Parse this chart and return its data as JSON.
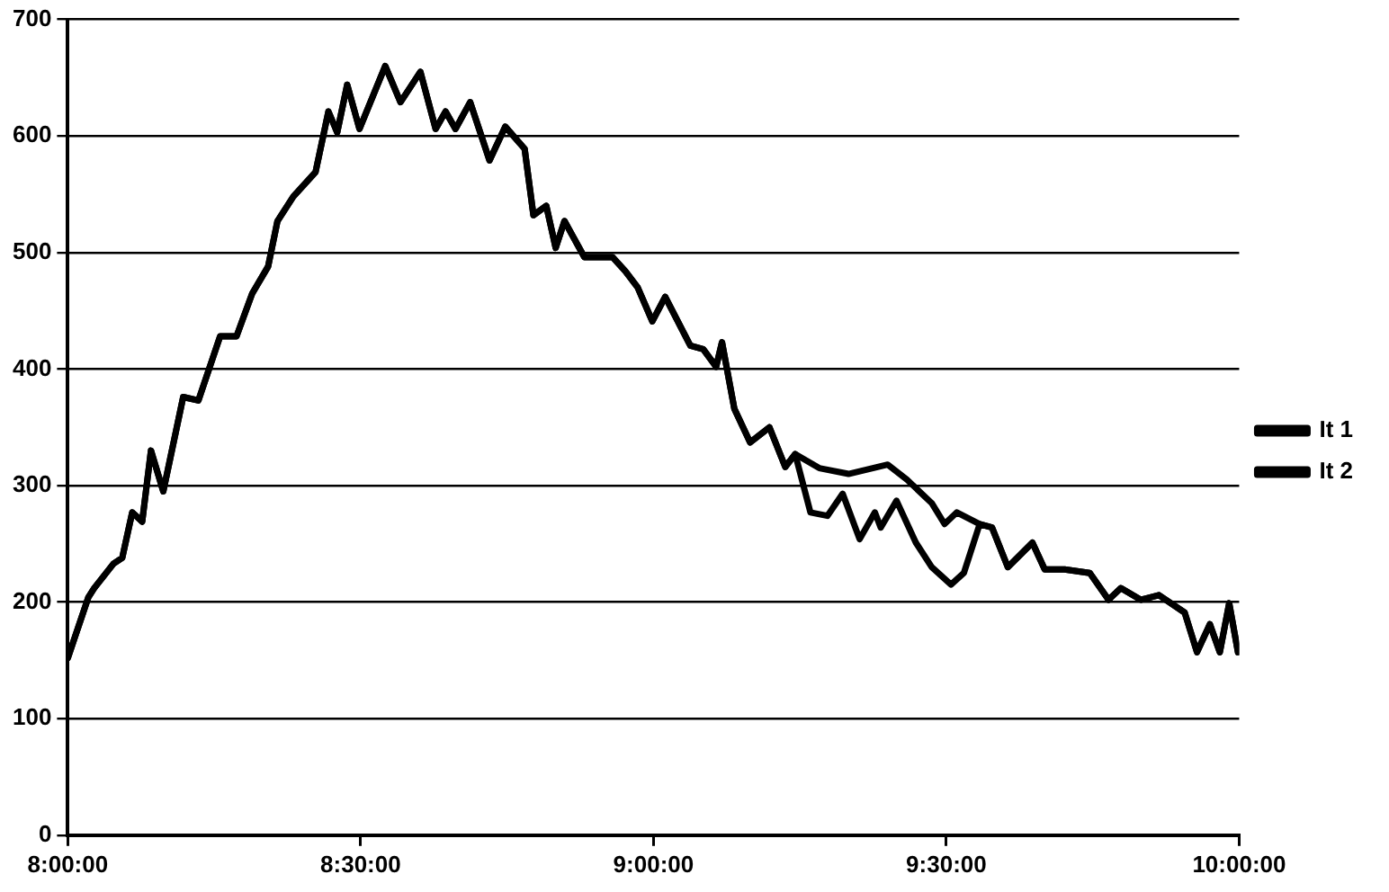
{
  "chart_data": {
    "type": "line",
    "legend": "right",
    "grid": "y",
    "marker": "none",
    "line_style": "solid",
    "xlim": [
      8,
      10
    ],
    "xticks": [
      {
        "value": 8,
        "label": "8:00:00"
      },
      {
        "value": 8.5,
        "label": "8:30:00"
      },
      {
        "value": 9,
        "label": "9:00:00"
      },
      {
        "value": 9.5,
        "label": "9:30:00"
      },
      {
        "value": 10,
        "label": "10:00:00"
      }
    ],
    "ylim": [
      0,
      700
    ],
    "yticks": [
      0,
      100,
      200,
      300,
      400,
      500,
      600,
      700
    ],
    "series": [
      {
        "name": "It 1",
        "color": "#000000",
        "x": [
          8,
          8.035,
          8.045,
          8.078,
          8.093,
          8.11,
          8.127,
          8.142,
          8.163,
          8.197,
          8.223,
          8.26,
          8.288,
          8.315,
          8.342,
          8.358,
          8.385,
          8.423,
          8.445,
          8.46,
          8.477,
          8.498,
          8.542,
          8.568,
          8.602,
          8.628,
          8.645,
          8.662,
          8.687,
          8.72,
          8.747,
          8.78,
          8.795,
          8.817,
          8.833,
          8.848,
          8.882,
          8.93,
          8.952,
          8.973,
          8.998,
          9.02,
          9.063,
          9.085,
          9.107,
          9.117,
          9.138,
          9.165,
          9.198,
          9.225,
          9.242,
          9.268,
          9.297,
          9.323,
          9.352,
          9.378,
          9.388,
          9.415,
          9.448,
          9.475,
          9.508,
          9.53,
          9.557,
          9.578,
          9.605,
          9.647,
          9.668,
          9.702,
          9.745,
          9.777,
          9.798,
          9.832,
          9.863,
          9.907,
          9.928,
          9.95,
          9.967,
          9.983,
          9.998
        ],
        "values": [
          152,
          204,
          212,
          233,
          238,
          277,
          269,
          330,
          295,
          376,
          373,
          428,
          428,
          465,
          488,
          527,
          548,
          569,
          621,
          603,
          644,
          606,
          660,
          629,
          655,
          606,
          621,
          606,
          629,
          579,
          608,
          589,
          532,
          540,
          504,
          527,
          496,
          496,
          484,
          470,
          441,
          462,
          420,
          417,
          402,
          423,
          366,
          337,
          350,
          316,
          327,
          277,
          274,
          293,
          254,
          277,
          264,
          287,
          251,
          230,
          215,
          225,
          267,
          264,
          230,
          251,
          228,
          228,
          225,
          202,
          212,
          202,
          206,
          191,
          157,
          181,
          157,
          199,
          157
        ]
      },
      {
        "name": "It 2",
        "color": "#000000",
        "x": [
          8,
          8.035,
          8.045,
          8.078,
          8.093,
          8.11,
          8.127,
          8.142,
          8.163,
          8.197,
          8.223,
          8.26,
          8.288,
          8.315,
          8.342,
          8.358,
          8.385,
          8.423,
          8.445,
          8.46,
          8.477,
          8.498,
          8.542,
          8.568,
          8.602,
          8.628,
          8.645,
          8.662,
          8.687,
          8.72,
          8.747,
          8.78,
          8.795,
          8.817,
          8.833,
          8.848,
          8.882,
          8.93,
          8.952,
          8.973,
          8.998,
          9.02,
          9.063,
          9.085,
          9.107,
          9.117,
          9.138,
          9.165,
          9.198,
          9.225,
          9.242,
          9.283,
          9.333,
          9.4,
          9.433,
          9.475,
          9.497,
          9.518,
          9.557,
          9.578,
          9.605,
          9.647,
          9.668,
          9.702,
          9.745,
          9.777,
          9.798,
          9.832,
          9.863,
          9.907,
          9.928,
          9.95,
          9.967,
          9.983,
          9.998
        ],
        "values": [
          152,
          204,
          212,
          233,
          238,
          277,
          269,
          330,
          295,
          376,
          373,
          428,
          428,
          465,
          488,
          527,
          548,
          569,
          621,
          603,
          644,
          606,
          660,
          629,
          655,
          606,
          621,
          606,
          629,
          579,
          608,
          589,
          532,
          540,
          504,
          527,
          496,
          496,
          484,
          470,
          441,
          462,
          420,
          417,
          402,
          423,
          366,
          337,
          350,
          316,
          327,
          315,
          310,
          318,
          305,
          285,
          267,
          277,
          267,
          264,
          230,
          251,
          228,
          228,
          225,
          202,
          212,
          202,
          206,
          191,
          157,
          181,
          157,
          199,
          157
        ]
      }
    ]
  }
}
